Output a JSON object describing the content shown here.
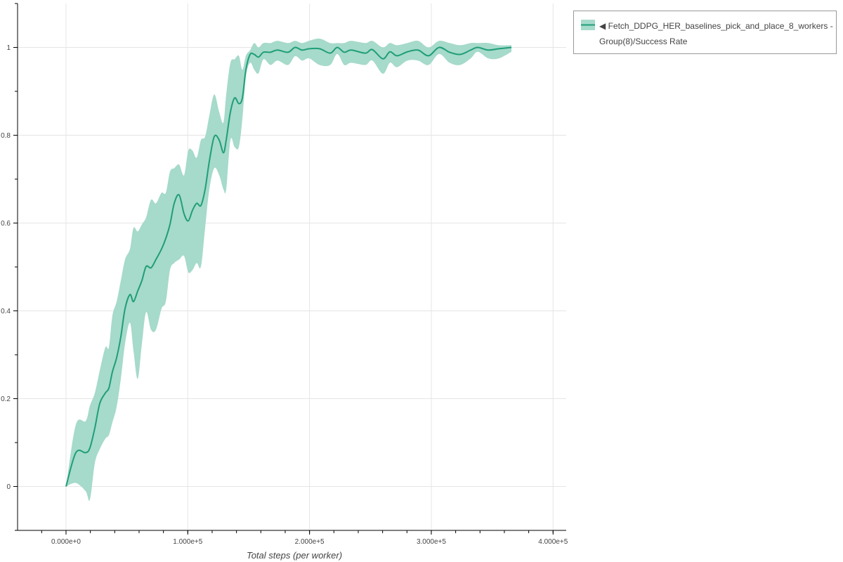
{
  "chart_data": {
    "type": "line",
    "title": "",
    "xlabel": "Total steps (per worker)",
    "ylabel": "",
    "xlim": [
      -39800,
      410800
    ],
    "ylim": [
      -0.1,
      1.1
    ],
    "grid": true,
    "legend_placement": "outside-top-right",
    "x_ticks": [
      0,
      100000,
      200000,
      300000,
      400000
    ],
    "x_tick_labels": [
      "0.000e+0",
      "1.000e+5",
      "2.000e+5",
      "3.000e+5",
      "4.000e+5"
    ],
    "y_ticks": [
      0,
      0.2,
      0.4,
      0.6,
      0.8,
      1
    ],
    "y_tick_labels": [
      "0",
      "0.2",
      "0.4",
      "0.6",
      "0.8",
      "1"
    ],
    "colors": {
      "line": "#1f9e77",
      "band": "#a6dacb"
    },
    "series": [
      {
        "name": "◀ Fetch_DDPG_HER_baselines_pick_and_place_8_workers - Group(8)/Success Rate",
        "x": [
          0,
          8078,
          16156,
          19618,
          23657,
          27696,
          32312,
          35197,
          38082,
          41544,
          45006,
          48468,
          52507,
          55392,
          58854,
          62316,
          65778,
          69817,
          73856,
          78472,
          81934,
          85396,
          88858,
          92897,
          96936,
          100398,
          103860,
          107322,
          110784,
          114246,
          117708,
          121747,
          125786,
          129248,
          131556,
          135018,
          138480,
          141942,
          144827,
          147712,
          151174,
          154636,
          158098,
          162137,
          167907,
          173677,
          182332,
          188102,
          193872,
          199642,
          208297,
          216952,
          222722,
          228492,
          234262,
          245802,
          251572,
          260227,
          265997,
          271767,
          280422,
          289077,
          297732,
          306387,
          315042,
          323697,
          332352,
          338122,
          346777,
          355432,
          365818
        ],
        "mean": [
          0,
          0.077,
          0.077,
          0.088,
          0.133,
          0.189,
          0.213,
          0.224,
          0.261,
          0.293,
          0.341,
          0.405,
          0.437,
          0.421,
          0.445,
          0.469,
          0.501,
          0.498,
          0.517,
          0.541,
          0.565,
          0.597,
          0.645,
          0.664,
          0.621,
          0.605,
          0.629,
          0.645,
          0.64,
          0.677,
          0.741,
          0.797,
          0.789,
          0.76,
          0.789,
          0.853,
          0.885,
          0.872,
          0.885,
          0.949,
          0.984,
          0.984,
          0.978,
          0.989,
          0.989,
          0.994,
          0.989,
          1.0,
          0.994,
          0.997,
          0.997,
          0.987,
          1.0,
          0.989,
          0.994,
          0.987,
          0.995,
          0.974,
          0.99,
          0.981,
          0.99,
          0.994,
          0.981,
          1.0,
          0.989,
          0.984,
          0.994,
          1.0,
          0.994,
          0.997,
          1.0
        ],
        "lower": [
          0,
          0.008,
          -0.011,
          -0.03,
          0.053,
          0.085,
          0.109,
          0.117,
          0.146,
          0.181,
          0.245,
          0.325,
          0.373,
          0.309,
          0.245,
          0.325,
          0.397,
          0.357,
          0.357,
          0.405,
          0.421,
          0.493,
          0.509,
          0.517,
          0.525,
          0.488,
          0.493,
          0.509,
          0.501,
          0.589,
          0.677,
          0.725,
          0.709,
          0.677,
          0.677,
          0.789,
          0.773,
          0.773,
          0.837,
          0.933,
          0.965,
          0.949,
          0.941,
          0.973,
          0.96,
          0.97,
          0.96,
          0.98,
          0.97,
          0.975,
          0.96,
          0.96,
          0.985,
          0.96,
          0.965,
          0.96,
          0.97,
          0.94,
          0.965,
          0.955,
          0.97,
          0.97,
          0.96,
          0.985,
          0.965,
          0.96,
          0.975,
          0.99,
          0.975,
          0.975,
          0.99
        ],
        "upper": [
          0,
          0.141,
          0.149,
          0.184,
          0.213,
          0.264,
          0.317,
          0.317,
          0.389,
          0.421,
          0.469,
          0.517,
          0.541,
          0.589,
          0.581,
          0.597,
          0.613,
          0.653,
          0.645,
          0.669,
          0.669,
          0.717,
          0.725,
          0.733,
          0.709,
          0.765,
          0.765,
          0.749,
          0.789,
          0.797,
          0.845,
          0.893,
          0.853,
          0.829,
          0.893,
          0.965,
          0.973,
          0.981,
          0.949,
          0.981,
          0.994,
          1.01,
          1.0,
          1.01,
          1.01,
          1.015,
          1.01,
          1.015,
          1.01,
          1.015,
          1.02,
          1.01,
          1.01,
          1.01,
          1.015,
          1.01,
          1.015,
          1.0,
          1.01,
          1.005,
          1.01,
          1.015,
          1.0,
          1.015,
          1.01,
          1.005,
          1.01,
          1.01,
          1.01,
          1.005,
          1.005
        ]
      }
    ]
  },
  "legend": {
    "label": "◀ Fetch_DDPG_HER_baselines_pick_and_place_8_workers - Group(8)/Success Rate"
  }
}
